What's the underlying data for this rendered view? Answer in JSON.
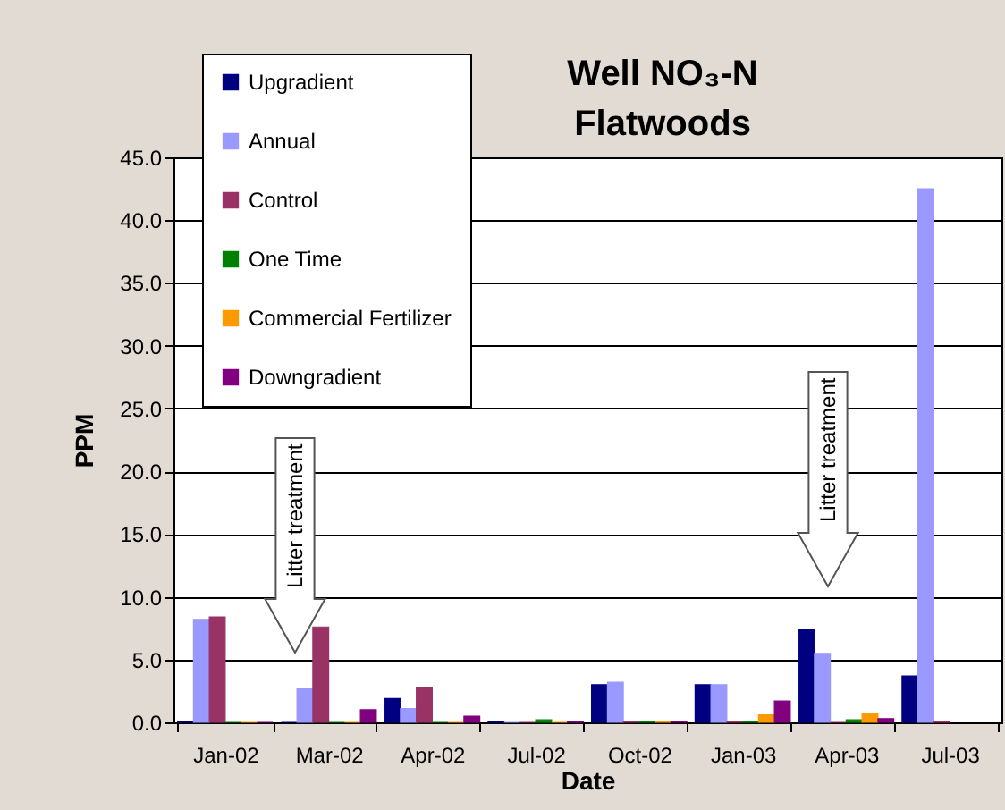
{
  "chart_data": {
    "type": "bar",
    "title": "Well NO₃-N",
    "subtitle": "Flatwoods",
    "xlabel": "Date",
    "ylabel": "PPM",
    "categories": [
      "Jan-02",
      "Mar-02",
      "Apr-02",
      "Jul-02",
      "Oct-02",
      "Jan-03",
      "Apr-03",
      "Jul-03"
    ],
    "series": [
      {
        "name": "Upgradient",
        "color": "#000080",
        "values": [
          0.1,
          0,
          1.9,
          0.1,
          3.0,
          3.0,
          7.4,
          3.7
        ]
      },
      {
        "name": "Annual",
        "color": "#9999ff",
        "values": [
          8.2,
          2.7,
          1.1,
          0,
          3.2,
          3.0,
          5.5,
          42.5
        ]
      },
      {
        "name": "Control",
        "color": "#993366",
        "values": [
          8.4,
          7.6,
          2.8,
          0,
          0.1,
          0.1,
          0,
          0.1
        ]
      },
      {
        "name": "One Time",
        "color": "#008000",
        "values": [
          0,
          0,
          0,
          0.2,
          0.1,
          0.1,
          0.2,
          null
        ]
      },
      {
        "name": "Commercial Fertilizer",
        "color": "#ff9900",
        "values": [
          0,
          0,
          0,
          0,
          0.1,
          0.6,
          0.7,
          null
        ]
      },
      {
        "name": "Downgradient",
        "color": "#800080",
        "values": [
          0,
          1.0,
          0.5,
          0.1,
          0.1,
          1.7,
          0.3,
          null
        ]
      }
    ],
    "ylim": [
      0,
      45
    ],
    "yticks": [
      {
        "value": 0,
        "label": "0.0"
      },
      {
        "value": 5,
        "label": "5.0"
      },
      {
        "value": 10,
        "label": "10.0"
      },
      {
        "value": 15,
        "label": "15.0"
      },
      {
        "value": 20,
        "label": "20.0"
      },
      {
        "value": 25,
        "label": "25.0"
      },
      {
        "value": 30,
        "label": "30.0"
      },
      {
        "value": 35,
        "label": "35.0"
      },
      {
        "value": 40,
        "label": "40.0"
      },
      {
        "value": 45,
        "label": "45.0"
      }
    ],
    "grid": "y",
    "legend": "top left",
    "annotations": [
      "Litter treatment",
      "Litter treatment"
    ]
  }
}
